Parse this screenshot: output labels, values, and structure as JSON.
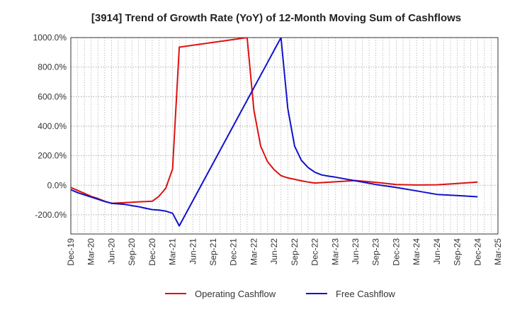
{
  "chart_data": {
    "type": "line",
    "title": "[3914]  Trend of Growth Rate (YoY) of 12-Month Moving Sum of Cashflows",
    "xlabel": "",
    "ylabel": "",
    "ylim": [
      -330,
      1000
    ],
    "y_ticks": [
      {
        "value": 1000,
        "label": "1000.0%"
      },
      {
        "value": 800,
        "label": "800.0%"
      },
      {
        "value": 600,
        "label": "600.0%"
      },
      {
        "value": 400,
        "label": "400.0%"
      },
      {
        "value": 200,
        "label": "200.0%"
      },
      {
        "value": 0,
        "label": "0.0%"
      },
      {
        "value": -200,
        "label": "-200.0%"
      }
    ],
    "x_categories": [
      "Dec-19",
      "Mar-20",
      "Jun-20",
      "Sep-20",
      "Dec-20",
      "Mar-21",
      "Jun-21",
      "Sep-21",
      "Dec-21",
      "Mar-22",
      "Jun-22",
      "Sep-22",
      "Dec-22",
      "Mar-23",
      "Jun-23",
      "Sep-23",
      "Dec-23",
      "Mar-24",
      "Jun-24",
      "Sep-24",
      "Dec-24",
      "Mar-25"
    ],
    "grid": true,
    "legend_position": "bottom",
    "series": [
      {
        "name": "Operating Cashflow",
        "color": "#dd1111",
        "points": [
          {
            "x": "Dec-19",
            "y": -15
          },
          {
            "x": "Jan-20",
            "y": -35
          },
          {
            "x": "Feb-20",
            "y": -55
          },
          {
            "x": "Mar-20",
            "y": -75
          },
          {
            "x": "Apr-20",
            "y": -90
          },
          {
            "x": "May-20",
            "y": -108
          },
          {
            "x": "Jun-20",
            "y": -122
          },
          {
            "x": "Jul-20",
            "y": -120
          },
          {
            "x": "Aug-20",
            "y": -118
          },
          {
            "x": "Sep-20",
            "y": -115
          },
          {
            "x": "Oct-20",
            "y": -112
          },
          {
            "x": "Nov-20",
            "y": -110
          },
          {
            "x": "Dec-20",
            "y": -108
          },
          {
            "x": "Jan-21",
            "y": -75
          },
          {
            "x": "Feb-21",
            "y": -20
          },
          {
            "x": "Mar-21",
            "y": 110
          },
          {
            "x": "Apr-21",
            "y": 935
          },
          {
            "x": "Feb-22",
            "y": 1000
          },
          {
            "x": "Mar-22",
            "y": 510
          },
          {
            "x": "Apr-22",
            "y": 265
          },
          {
            "x": "May-22",
            "y": 160
          },
          {
            "x": "Jun-22",
            "y": 105
          },
          {
            "x": "Jul-22",
            "y": 65
          },
          {
            "x": "Aug-22",
            "y": 50
          },
          {
            "x": "Sep-22",
            "y": 40
          },
          {
            "x": "Oct-22",
            "y": 30
          },
          {
            "x": "Nov-22",
            "y": 22
          },
          {
            "x": "Dec-22",
            "y": 15
          },
          {
            "x": "Jun-23",
            "y": 32
          },
          {
            "x": "Sep-23",
            "y": 20
          },
          {
            "x": "Dec-23",
            "y": 5
          },
          {
            "x": "Mar-24",
            "y": 2
          },
          {
            "x": "Jun-24",
            "y": 3
          },
          {
            "x": "Sep-24",
            "y": 12
          },
          {
            "x": "Dec-24",
            "y": 22
          }
        ]
      },
      {
        "name": "Free Cashflow",
        "color": "#1111cc",
        "points": [
          {
            "x": "Dec-19",
            "y": -30
          },
          {
            "x": "Jan-20",
            "y": -50
          },
          {
            "x": "Feb-20",
            "y": -65
          },
          {
            "x": "Mar-20",
            "y": -80
          },
          {
            "x": "Apr-20",
            "y": -95
          },
          {
            "x": "May-20",
            "y": -110
          },
          {
            "x": "Jun-20",
            "y": -122
          },
          {
            "x": "Jul-20",
            "y": -126
          },
          {
            "x": "Aug-20",
            "y": -130
          },
          {
            "x": "Sep-20",
            "y": -138
          },
          {
            "x": "Oct-20",
            "y": -145
          },
          {
            "x": "Nov-20",
            "y": -155
          },
          {
            "x": "Dec-20",
            "y": -165
          },
          {
            "x": "Jan-21",
            "y": -168
          },
          {
            "x": "Feb-21",
            "y": -175
          },
          {
            "x": "Mar-21",
            "y": -190
          },
          {
            "x": "Apr-21",
            "y": -275
          },
          {
            "x": "Jul-22",
            "y": 1000
          },
          {
            "x": "Aug-22",
            "y": 520
          },
          {
            "x": "Sep-22",
            "y": 265
          },
          {
            "x": "Oct-22",
            "y": 170
          },
          {
            "x": "Nov-22",
            "y": 120
          },
          {
            "x": "Dec-22",
            "y": 88
          },
          {
            "x": "Jan-23",
            "y": 70
          },
          {
            "x": "Feb-23",
            "y": 62
          },
          {
            "x": "Mar-23",
            "y": 55
          },
          {
            "x": "Jun-23",
            "y": 30
          },
          {
            "x": "Sep-23",
            "y": 5
          },
          {
            "x": "Dec-23",
            "y": -15
          },
          {
            "x": "Mar-24",
            "y": -38
          },
          {
            "x": "Jun-24",
            "y": -62
          },
          {
            "x": "Sep-24",
            "y": -70
          },
          {
            "x": "Dec-24",
            "y": -78
          }
        ]
      }
    ]
  }
}
